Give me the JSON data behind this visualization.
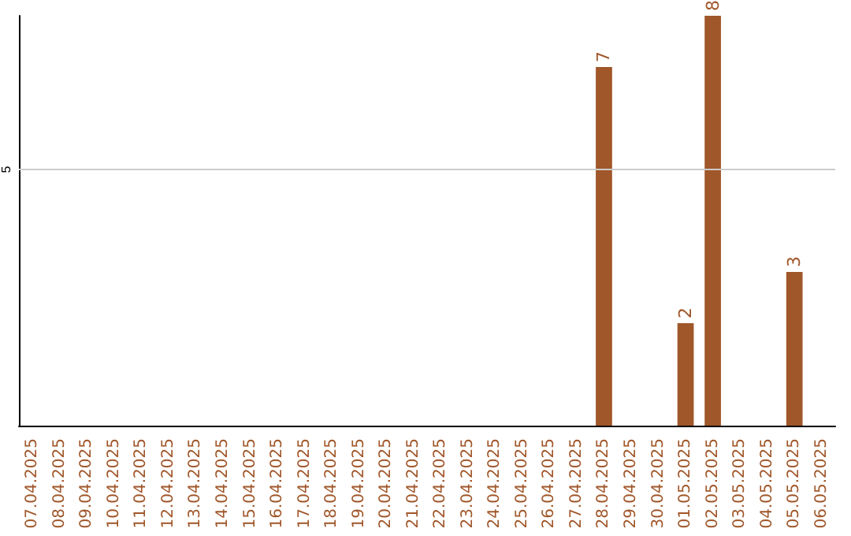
{
  "chart_data": {
    "type": "bar",
    "categories": [
      "07.04.2025",
      "08.04.2025",
      "09.04.2025",
      "10.04.2025",
      "11.04.2025",
      "12.04.2025",
      "13.04.2025",
      "14.04.2025",
      "15.04.2025",
      "16.04.2025",
      "17.04.2025",
      "18.04.2025",
      "19.04.2025",
      "20.04.2025",
      "21.04.2025",
      "22.04.2025",
      "23.04.2025",
      "24.04.2025",
      "25.04.2025",
      "26.04.2025",
      "27.04.2025",
      "28.04.2025",
      "29.04.2025",
      "30.04.2025",
      "01.05.2025",
      "02.05.2025",
      "03.05.2025",
      "04.05.2025",
      "05.05.2025",
      "06.05.2025"
    ],
    "values": [
      null,
      null,
      null,
      null,
      null,
      null,
      null,
      null,
      null,
      null,
      null,
      null,
      null,
      null,
      null,
      null,
      null,
      null,
      null,
      null,
      null,
      7,
      null,
      null,
      2,
      8,
      null,
      null,
      3,
      null
    ],
    "color": "#a0572a",
    "ylim": [
      0,
      8
    ],
    "yticks": [
      5
    ],
    "grid": "y",
    "data_labels": true
  }
}
